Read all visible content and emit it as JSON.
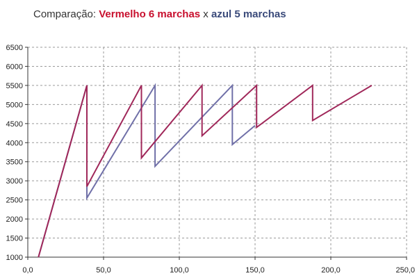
{
  "title": {
    "prefix": "Comparação: ",
    "red_text": "Vermelho 6 marchas",
    "sep": " x ",
    "blue_text": "azul 5 marchas"
  },
  "colors": {
    "red_series": "#a0285a",
    "blue_series": "#7070a8",
    "grid": "#9a9a9a",
    "axis": "#333333",
    "title_red": "#c8102e",
    "title_blue": "#3a4a7a"
  },
  "chart_data": {
    "type": "line",
    "title": "Comparação: Vermelho 6 marchas x azul 5 marchas",
    "xlabel": "",
    "ylabel": "",
    "xlim": [
      0,
      250
    ],
    "ylim": [
      1000,
      6500
    ],
    "x_ticks": [
      "0,0",
      "50,0",
      "100,0",
      "150,0",
      "200,0",
      "250,0"
    ],
    "x_tick_values": [
      0,
      50,
      100,
      150,
      200,
      250
    ],
    "y_ticks": [
      "1000",
      "1500",
      "2000",
      "2500",
      "3000",
      "3500",
      "4000",
      "4500",
      "5000",
      "5500",
      "6000",
      "6500"
    ],
    "y_tick_values": [
      1000,
      1500,
      2000,
      2500,
      3000,
      3500,
      4000,
      4500,
      5000,
      5500,
      6000,
      6500
    ],
    "grid": true,
    "series": [
      {
        "key": "blue",
        "x": [
          7,
          39,
          39,
          84,
          84,
          135,
          135,
          150
        ],
        "y": [
          1000,
          5500,
          2550,
          5500,
          3380,
          5500,
          3950,
          4450
        ]
      },
      {
        "key": "red",
        "x": [
          7,
          39,
          39,
          75,
          75,
          115,
          115,
          151,
          151,
          188,
          188,
          227
        ],
        "y": [
          1000,
          5500,
          2850,
          5500,
          3600,
          5500,
          4180,
          5500,
          4400,
          5500,
          4580,
          5500
        ]
      }
    ]
  }
}
